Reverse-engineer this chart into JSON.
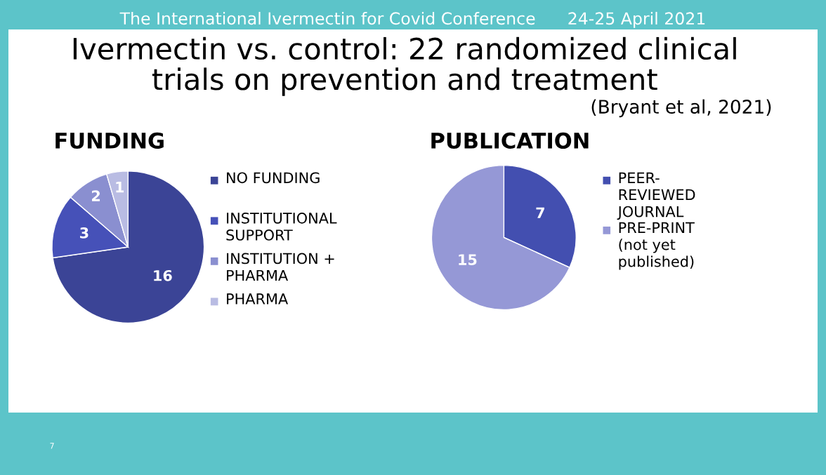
{
  "chart_data": [
    {
      "type": "pie",
      "title": "FUNDING",
      "categories": [
        "NO FUNDING",
        "INSTITUTIONAL\nSUPPORT",
        "INSTITUTION +\nPHARMA",
        "PHARMA"
      ],
      "values": [
        16,
        3,
        2,
        1
      ],
      "colors": [
        "#3b4496",
        "#4651b8",
        "#8a8fd0",
        "#b9bce3"
      ],
      "data_labels": true,
      "legend": "right",
      "annotations": [
        "The International Ivermectin for Covid Conference      24-25 April 2021",
        "Ivermectin vs. control: 22 randomized clinical\ntrials on prevention and treatment",
        "(Bryant et al, 2021)",
        "7"
      ]
    },
    {
      "type": "pie",
      "title": "PUBLICATION",
      "categories": [
        "PEER-\nREVIEWED\nJOURNAL",
        "PRE-PRINT\n(not yet\npublished)"
      ],
      "values": [
        7,
        15
      ],
      "colors": [
        "#434fb0",
        "#9598d6"
      ],
      "data_labels": true,
      "legend": "right"
    }
  ]
}
